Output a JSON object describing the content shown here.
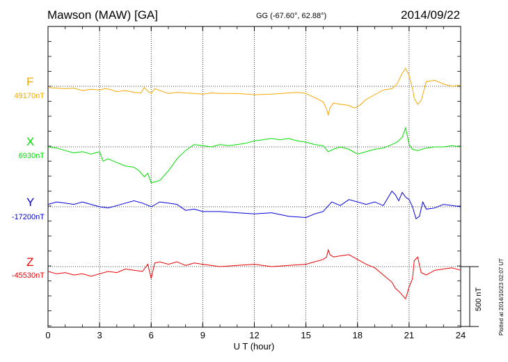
{
  "header": {
    "station": "Mawson (MAW)  [GA]",
    "coords": "GG (-67.60°,  62.88°)",
    "date": "2014/09/22"
  },
  "side_note": "Plotted at 2014/10/23 02:07 UT",
  "scale_label": "500 nT",
  "colors": {
    "F": "#f5a800",
    "X": "#00dd00",
    "Y": "#0000dd",
    "Z": "#ee0000"
  },
  "chart_data": {
    "type": "line",
    "xlabel": "U T (hour)",
    "xlim": [
      0,
      24
    ],
    "xticks": [
      "0",
      "3",
      "6",
      "9",
      "12",
      "15",
      "18",
      "21",
      "24"
    ],
    "scale_bar_nT": 500,
    "series": [
      {
        "name": "F",
        "baseline": "49170nT",
        "baseline_nT": 49170,
        "x": [
          0,
          0.5,
          1,
          1.5,
          2,
          2.5,
          3,
          3.3,
          3.6,
          4,
          4.5,
          5,
          5.4,
          5.6,
          5.8,
          6,
          6.2,
          6.5,
          7,
          7.5,
          8,
          8.5,
          9,
          9.5,
          10,
          11,
          12,
          13,
          14,
          14.5,
          15,
          15.3,
          15.6,
          16,
          16.2,
          16.3,
          16.4,
          16.6,
          17,
          17.5,
          17.8,
          18,
          18.2,
          18.5,
          19,
          19.5,
          20,
          20.3,
          20.6,
          20.8,
          21,
          21.2,
          21.3,
          21.5,
          21.7,
          22,
          22.5,
          23,
          23.5,
          24
        ],
        "y": [
          -10,
          -15,
          -20,
          -15,
          -35,
          -25,
          -30,
          -20,
          -25,
          -45,
          -35,
          -50,
          -55,
          -10,
          -40,
          -60,
          -20,
          -35,
          -60,
          -50,
          -55,
          -60,
          -65,
          -55,
          -60,
          -60,
          -70,
          -65,
          -55,
          -50,
          -60,
          -80,
          -100,
          -130,
          -190,
          -240,
          -180,
          -140,
          -150,
          -160,
          -180,
          -170,
          -150,
          -110,
          -70,
          -30,
          -20,
          20,
          110,
          150,
          90,
          -20,
          -100,
          -150,
          -120,
          40,
          50,
          20,
          0,
          10
        ]
      },
      {
        "name": "X",
        "baseline": "6930nT",
        "baseline_nT": 6930,
        "x": [
          0,
          0.5,
          1,
          1.5,
          2,
          2.5,
          3,
          3.2,
          3.5,
          4,
          4.5,
          5,
          5.3,
          5.6,
          5.8,
          6,
          6.5,
          7,
          7.5,
          8,
          8.5,
          9,
          9.5,
          10,
          10.5,
          11,
          11.5,
          12,
          12.5,
          13,
          13.5,
          14,
          14.5,
          15,
          15.5,
          16,
          16.3,
          16.6,
          17,
          17.5,
          18,
          18.5,
          19,
          19.5,
          20,
          20.3,
          20.6,
          20.8,
          21,
          21.2,
          21.5,
          22,
          22.5,
          23,
          23.5,
          24
        ],
        "y": [
          0,
          -10,
          -30,
          -50,
          -40,
          -60,
          -40,
          -120,
          -100,
          -130,
          -160,
          -170,
          -200,
          -250,
          -220,
          -300,
          -280,
          -200,
          -100,
          -30,
          20,
          10,
          0,
          20,
          10,
          20,
          30,
          50,
          60,
          70,
          60,
          70,
          50,
          40,
          20,
          10,
          -40,
          -20,
          0,
          -20,
          -60,
          -40,
          -20,
          -10,
          20,
          40,
          80,
          160,
          20,
          -20,
          -30,
          -10,
          0,
          0,
          10,
          0
        ]
      },
      {
        "name": "Y",
        "baseline": "-17200nT",
        "baseline_nT": -17200,
        "x": [
          0,
          0.5,
          1,
          1.5,
          2,
          2.5,
          3,
          3.5,
          4,
          4.5,
          5,
          5.5,
          6,
          6.5,
          7,
          7.5,
          8,
          8.5,
          9,
          10,
          11,
          12,
          13,
          14,
          15,
          15.5,
          16,
          16.5,
          17,
          17.5,
          18,
          18.5,
          19,
          19.5,
          20,
          20.2,
          20.4,
          20.6,
          20.8,
          21,
          21.2,
          21.4,
          21.6,
          21.8,
          22,
          22.5,
          23,
          23.5,
          24
        ],
        "y": [
          20,
          40,
          30,
          20,
          40,
          20,
          0,
          -10,
          10,
          30,
          50,
          30,
          0,
          40,
          30,
          20,
          -30,
          -20,
          -40,
          -40,
          -50,
          -60,
          -50,
          -80,
          -90,
          -60,
          -40,
          40,
          10,
          60,
          40,
          20,
          40,
          10,
          130,
          100,
          50,
          120,
          80,
          60,
          0,
          -100,
          -80,
          40,
          -20,
          -10,
          20,
          10,
          0
        ]
      },
      {
        "name": "Z",
        "baseline": "-45530nT",
        "baseline_nT": -45530,
        "x": [
          0,
          0.5,
          1,
          1.5,
          2,
          2.5,
          3,
          3.5,
          4,
          4.5,
          5,
          5.5,
          5.8,
          6,
          6.2,
          6.5,
          7,
          7.5,
          8,
          8.5,
          9,
          9.5,
          10,
          11,
          12,
          13,
          14,
          15,
          15.5,
          16,
          16.2,
          16.3,
          16.4,
          16.6,
          17,
          17.5,
          18,
          18.5,
          19,
          19.5,
          20,
          20.2,
          20.5,
          20.8,
          21,
          21.2,
          21.3,
          21.5,
          21.7,
          22,
          22.5,
          23,
          23.5,
          24
        ],
        "y": [
          -40,
          -60,
          -50,
          -70,
          -60,
          -80,
          -60,
          -40,
          -50,
          -20,
          -30,
          -40,
          20,
          -100,
          30,
          40,
          20,
          40,
          10,
          30,
          20,
          10,
          0,
          10,
          20,
          0,
          10,
          20,
          40,
          60,
          80,
          140,
          100,
          80,
          90,
          100,
          60,
          20,
          -10,
          -70,
          -130,
          -180,
          -220,
          -270,
          -170,
          -100,
          50,
          80,
          -50,
          -70,
          -30,
          -20,
          -10,
          -30
        ]
      }
    ]
  }
}
